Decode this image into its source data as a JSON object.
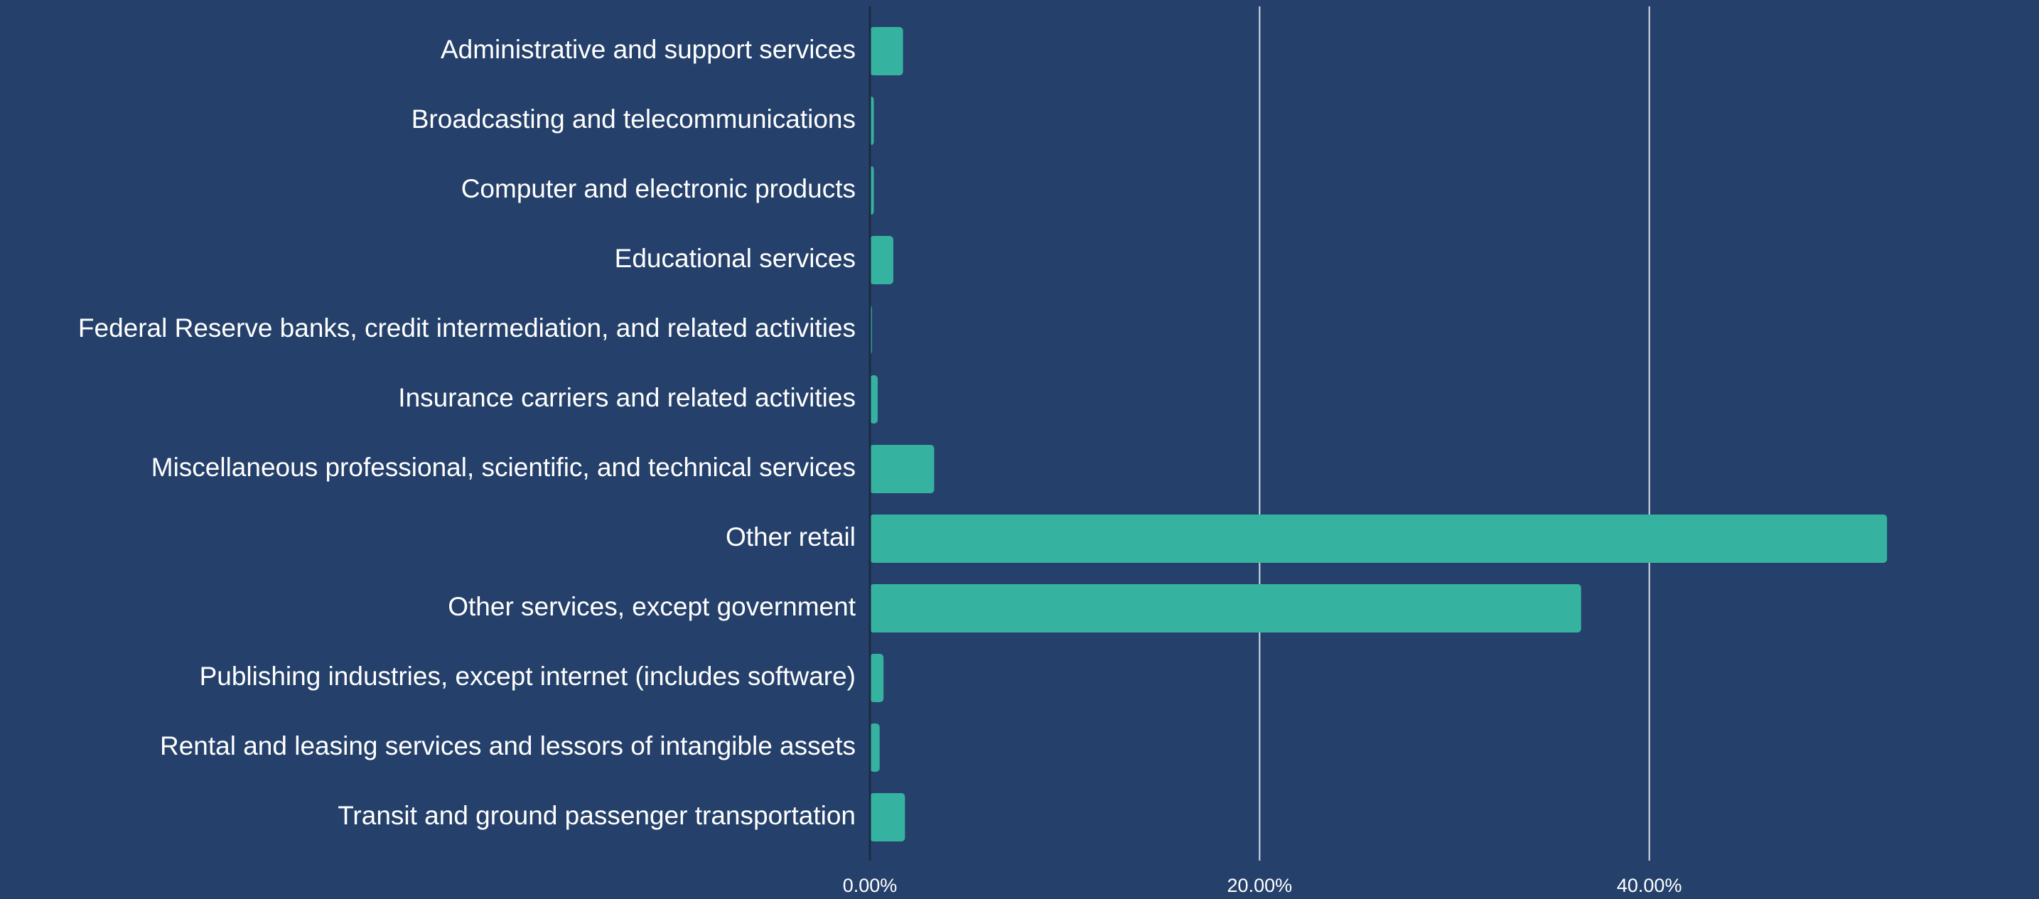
{
  "chart_data": {
    "type": "barh",
    "categories": [
      "Administrative and support services",
      "Broadcasting and telecommunications",
      "Computer and electronic products",
      "Educational services",
      "Federal Reserve banks, credit intermediation, and related activities",
      "Insurance carriers and related activities",
      "Miscellaneous professional, scientific, and technical services",
      "Other retail",
      "Other services, except government",
      "Publishing industries, except internet (includes software)",
      "Rental and leasing services and lessors of intangible assets",
      "Transit and ground passenger transportation"
    ],
    "values": [
      1.7,
      0.2,
      0.2,
      1.2,
      0.1,
      0.4,
      3.3,
      52.2,
      36.5,
      0.7,
      0.5,
      1.8
    ],
    "color": "#36b3a0",
    "xlim": [
      0,
      60
    ],
    "xticks": [
      {
        "value": 0,
        "label": "0.00%"
      },
      {
        "value": 20,
        "label": "20.00%"
      },
      {
        "value": 40,
        "label": "40.00%"
      }
    ],
    "grid": true
  }
}
